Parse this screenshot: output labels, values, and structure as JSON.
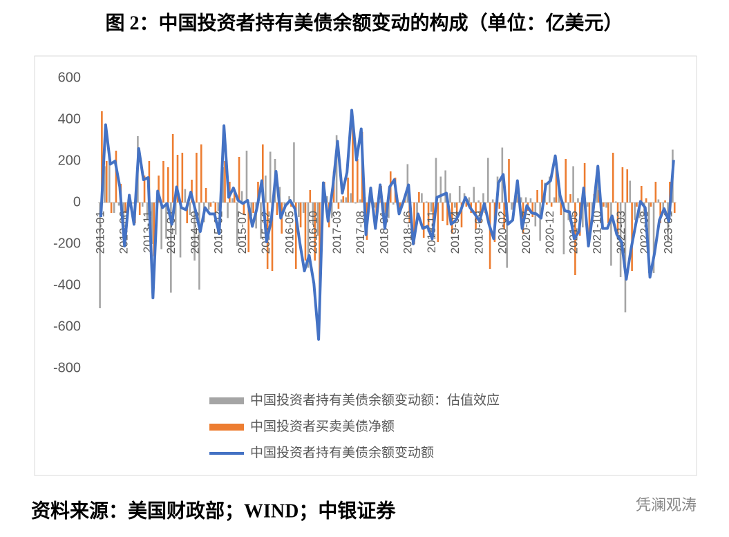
{
  "chart_data": {
    "type": "combo",
    "title": "图 2：中国投资者持有美债余额变动的构成（单位：亿美元）",
    "source": "资料来源：美国财政部；WIND；中银证券",
    "watermark": "凭澜观涛",
    "categories": [
      "2013-01",
      null,
      null,
      null,
      null,
      "2013-06",
      null,
      null,
      null,
      null,
      "2013-11",
      null,
      null,
      null,
      null,
      "2014-04",
      null,
      null,
      null,
      null,
      "2014-09",
      null,
      null,
      null,
      null,
      "2015-02",
      null,
      null,
      null,
      null,
      "2015-07",
      null,
      null,
      null,
      null,
      "2015-12",
      null,
      null,
      null,
      null,
      "2016-05",
      null,
      null,
      null,
      null,
      "2016-10",
      null,
      null,
      null,
      null,
      "2017-03",
      null,
      null,
      null,
      null,
      "2017-08",
      null,
      null,
      null,
      null,
      "2018-01",
      null,
      null,
      null,
      null,
      "2018-06",
      null,
      null,
      null,
      null,
      "2018-11",
      null,
      null,
      null,
      null,
      "2019-04",
      null,
      null,
      null,
      null,
      "2019-09",
      null,
      null,
      null,
      null,
      "2020-02",
      null,
      null,
      null,
      null,
      "2020-07",
      null,
      null,
      null,
      null,
      "2020-12",
      null,
      null,
      null,
      null,
      "2021-05",
      null,
      null,
      null,
      null,
      "2021-10",
      null,
      null,
      null,
      null,
      "2022-03",
      null,
      null,
      null,
      null,
      "2022-08",
      null,
      null,
      null,
      null,
      "2023-01",
      null
    ],
    "series": [
      {
        "name": "中国投资者持有美债余额变动额：估值效应",
        "type": "bar",
        "color": "#a5a5a5",
        "values": [
          -510,
          175,
          235,
          -50,
          -15,
          -160,
          15,
          -5,
          320,
          -20,
          -80,
          -200,
          -75,
          -225,
          -175,
          -435,
          -155,
          -265,
          65,
          -60,
          -280,
          -420,
          -95,
          -35,
          5,
          -40,
          170,
          -75,
          20,
          -210,
          55,
          250,
          -65,
          -125,
          -175,
          130,
          245,
          210,
          75,
          -15,
          30,
          290,
          -70,
          -50,
          -315,
          -110,
          -160,
          -5,
          30,
          -75,
          325,
          15,
          25,
          45,
          -5,
          15,
          25,
          30,
          -25,
          5,
          -75,
          -75,
          -10,
          -25,
          -10,
          185,
          0,
          -105,
          45,
          5,
          -45,
          215,
          125,
          155,
          45,
          -25,
          80,
          45,
          25,
          75,
          10,
          45,
          215,
          15,
          125,
          265,
          -315,
          -35,
          35,
          25,
          25,
          20,
          -115,
          -185,
          95,
          125,
          25,
          95,
          -250,
          -85,
          175,
          20,
          -120,
          -20,
          -80,
          115,
          -105,
          -25,
          -305,
          5,
          -360,
          -530,
          105,
          -85,
          -75,
          -45,
          -340,
          -340,
          15,
          -40,
          -190,
          255
        ]
      },
      {
        "name": "中国投资者买卖美债净额",
        "type": "bar",
        "color": "#ed7d31",
        "values": [
          440,
          200,
          -50,
          250,
          90,
          -50,
          20,
          -100,
          -60,
          130,
          200,
          -260,
          130,
          200,
          170,
          330,
          230,
          240,
          -100,
          110,
          240,
          280,
          70,
          -20,
          -60,
          -110,
          200,
          100,
          50,
          220,
          -60,
          -240,
          -50,
          100,
          280,
          -320,
          -330,
          -60,
          -150,
          0,
          -20,
          -320,
          -120,
          -280,
          60,
          -280,
          -500,
          100,
          -120,
          150,
          -30,
          30,
          120,
          400,
          210,
          340,
          -180,
          40,
          -100,
          80,
          -50,
          150,
          120,
          -30,
          20,
          -100,
          -200,
          50,
          -170,
          -120,
          -130,
          -190,
          -90,
          -110,
          -150,
          -60,
          -120,
          -20,
          -50,
          -130,
          -100,
          -50,
          -320,
          -190,
          -30,
          -130,
          210,
          -50,
          70,
          -150,
          -40,
          -70,
          60,
          110,
          -10,
          -20,
          200,
          -60,
          210,
          40,
          -350,
          -160,
          190,
          -190,
          40,
          60,
          -20,
          -100,
          240,
          -160,
          170,
          160,
          -330,
          -20,
          80,
          20,
          -20,
          100,
          -100,
          10,
          100,
          -50
        ]
      },
      {
        "name": "中国投资者持有美债余额变动额",
        "type": "line",
        "color": "#4472c4",
        "values": [
          -70,
          375,
          185,
          200,
          75,
          -210,
          35,
          -105,
          260,
          110,
          120,
          -460,
          55,
          -25,
          -5,
          -105,
          75,
          -25,
          -35,
          50,
          -40,
          -140,
          -25,
          -55,
          -55,
          -150,
          370,
          25,
          70,
          10,
          -5,
          10,
          -115,
          -25,
          105,
          -190,
          -85,
          150,
          -75,
          -15,
          10,
          -30,
          -190,
          -330,
          -255,
          -390,
          -660,
          95,
          -90,
          75,
          295,
          45,
          145,
          445,
          205,
          355,
          -155,
          70,
          -125,
          85,
          -125,
          75,
          110,
          -55,
          10,
          85,
          -200,
          -55,
          -125,
          -115,
          -175,
          25,
          35,
          45,
          -105,
          -85,
          -40,
          25,
          -25,
          -55,
          -90,
          -5,
          -105,
          -175,
          95,
          135,
          -105,
          -85,
          105,
          -125,
          -15,
          -50,
          -55,
          -75,
          85,
          105,
          225,
          35,
          -40,
          -45,
          -175,
          -140,
          70,
          -210,
          -40,
          175,
          -125,
          -125,
          -65,
          -155,
          -190,
          -370,
          -225,
          -105,
          5,
          -25,
          -360,
          -240,
          -85,
          -30,
          -90,
          205
        ]
      }
    ],
    "ylim": [
      -800,
      600
    ],
    "yticks": [
      -800,
      -600,
      -400,
      -200,
      0,
      200,
      400,
      600
    ],
    "grid": false,
    "legend": "bottom"
  }
}
